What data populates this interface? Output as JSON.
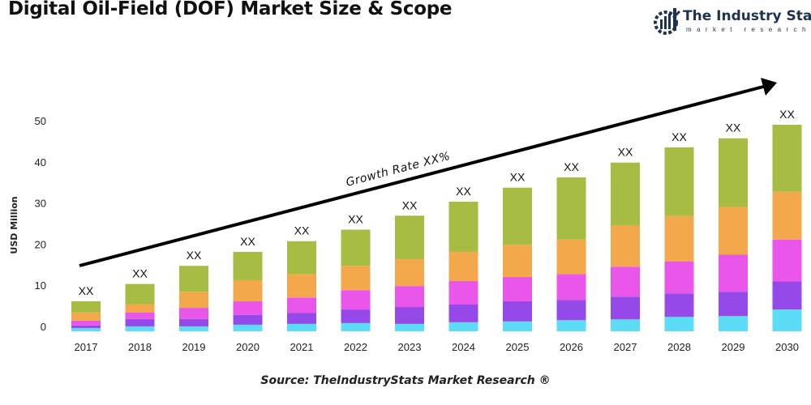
{
  "title": "Digital Oil-Field (DOF) Market Size & Scope",
  "logo": {
    "name": "The Industry Stats",
    "tagline": "market research"
  },
  "source": "Source: TheIndustryStats Market Research ®",
  "chart_data": {
    "type": "bar",
    "stacked": true,
    "title": "Digital Oil-Field (DOF) Market Size & Scope",
    "xlabel": "",
    "ylabel": "USD Million",
    "ylim": [
      0,
      50
    ],
    "yticks": [
      0,
      10,
      20,
      30,
      40,
      50
    ],
    "grid": false,
    "categories": [
      "2017",
      "2018",
      "2019",
      "2020",
      "2021",
      "2022",
      "2023",
      "2024",
      "2025",
      "2026",
      "2027",
      "2028",
      "2029",
      "2030"
    ],
    "bar_labels": [
      "XX",
      "XX",
      "XX",
      "XX",
      "XX",
      "XX",
      "XX",
      "XX",
      "XX",
      "XX",
      "XX",
      "XX",
      "XX",
      "XX"
    ],
    "annotation": "Growth Rate XX%",
    "series": [
      {
        "color": "#5ddcf8",
        "values": [
          0.8,
          1.2,
          1.2,
          1.6,
          1.8,
          2.0,
          1.8,
          2.2,
          2.4,
          2.7,
          2.9,
          3.5,
          3.7,
          5.3
        ]
      },
      {
        "color": "#9549e8",
        "values": [
          0.6,
          1.8,
          1.8,
          2.4,
          2.7,
          3.3,
          4.1,
          4.3,
          4.9,
          4.9,
          5.5,
          5.7,
          5.9,
          6.8
        ]
      },
      {
        "color": "#ea55ea",
        "values": [
          1.2,
          1.6,
          2.7,
          3.3,
          3.7,
          4.7,
          5.1,
          5.7,
          5.9,
          6.3,
          7.3,
          7.8,
          9.0,
          10.2
        ]
      },
      {
        "color": "#f4a84c",
        "values": [
          2.0,
          2.0,
          3.9,
          5.1,
          5.7,
          5.9,
          6.5,
          7.1,
          7.8,
          8.4,
          10.0,
          11.0,
          11.6,
          11.6
        ]
      },
      {
        "color": "#a6bc43",
        "values": [
          2.7,
          4.9,
          6.3,
          6.9,
          8.0,
          8.8,
          10.6,
          12.2,
          13.9,
          15.1,
          15.3,
          16.7,
          16.7,
          16.3
        ]
      }
    ]
  }
}
